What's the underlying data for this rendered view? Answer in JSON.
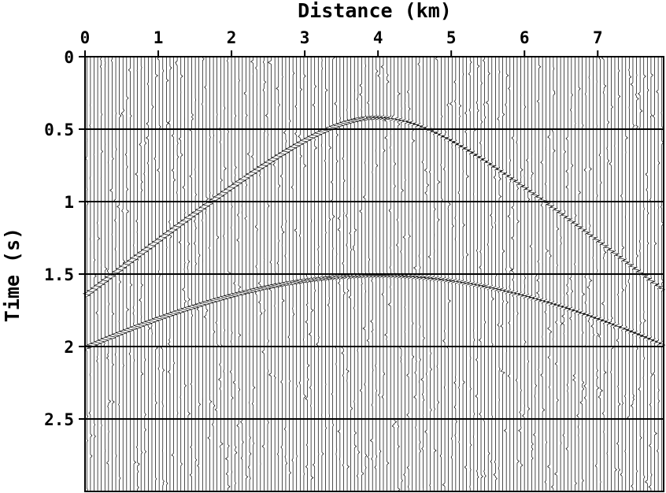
{
  "chart_data": {
    "type": "seismic-wiggle",
    "xlabel": "Distance (km)",
    "ylabel": "Time (s)",
    "xlim": [
      0,
      7.9
    ],
    "ylim": [
      0,
      3.0
    ],
    "y_inverted": true,
    "x_axis_position": "top",
    "x_ticks": [
      {
        "value": 0,
        "label": "0"
      },
      {
        "value": 1,
        "label": "1"
      },
      {
        "value": 2,
        "label": "2"
      },
      {
        "value": 3,
        "label": "3"
      },
      {
        "value": 4,
        "label": "4"
      },
      {
        "value": 5,
        "label": "5"
      },
      {
        "value": 6,
        "label": "6"
      },
      {
        "value": 7,
        "label": "7"
      }
    ],
    "y_ticks": [
      {
        "value": 0,
        "label": "0"
      },
      {
        "value": 0.5,
        "label": "0.5"
      },
      {
        "value": 1,
        "label": "1"
      },
      {
        "value": 1.5,
        "label": "1.5"
      },
      {
        "value": 2,
        "label": "2"
      },
      {
        "value": 2.5,
        "label": "2.5"
      }
    ],
    "grid_lines_y": [
      0.5,
      1.0,
      1.5,
      2.0,
      2.5
    ],
    "trace_count": 160,
    "events": [
      {
        "apex_x": 4.0,
        "apex_t": 0.42,
        "t_at_x0": 1.65,
        "t_at_xmax": 1.67
      },
      {
        "apex_x": 4.0,
        "apex_t": 1.51,
        "t_at_x0": 2.01,
        "t_at_xmax": 2.01
      }
    ],
    "noise": "random spikes on all traces",
    "line_color": "#000000",
    "background": "#ffffff"
  }
}
